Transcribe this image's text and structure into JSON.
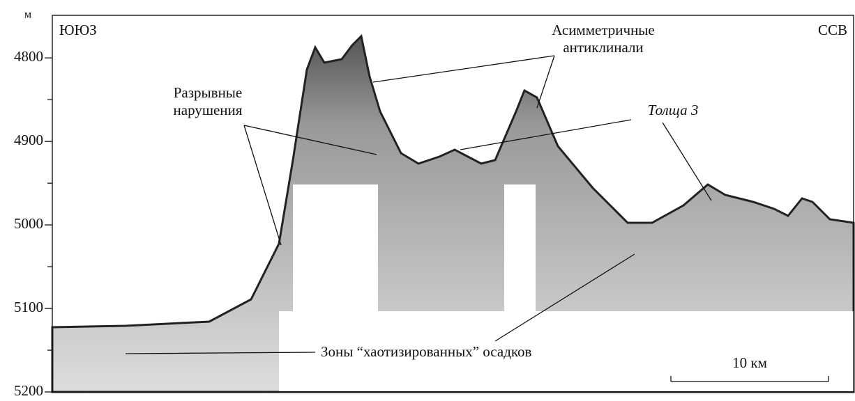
{
  "figure": {
    "unit": "м",
    "ylim": [
      4749,
      5200
    ],
    "yticks": [
      4800,
      4900,
      5000,
      5100,
      5200
    ],
    "minor_yticks": [
      4850,
      4950,
      5050,
      5150
    ],
    "direction_left": "ЮЮЗ",
    "direction_right": "ССВ",
    "annotations": {
      "anticlines": [
        "Асимметричные",
        "антиклинали"
      ],
      "faults": [
        "Разрывные",
        "нарушения"
      ],
      "layer": "Толща 3",
      "chaotic_zones": "Зоны “хаотизированных” осадков"
    },
    "scale_bar": "10 км"
  }
}
